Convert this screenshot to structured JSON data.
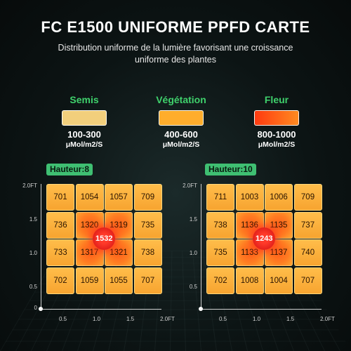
{
  "title": "FC E1500 UNIFORME PPFD CARTE",
  "subtitle": "Distribution uniforme de la lumière favorisant une croissance uniforme des plantes",
  "legend": [
    {
      "label": "Semis",
      "range": "100-300",
      "unit": "μMol/m2/S",
      "color": "#f2cf7c"
    },
    {
      "label": "Végétation",
      "range": "400-600",
      "unit": "μMol/m2/S",
      "color": "#ffad2c"
    },
    {
      "label": "Fleur",
      "range": "800-1000",
      "unit": "μMol/m2/S",
      "color": "#ff4a12"
    }
  ],
  "maps": [
    {
      "height_label": "Hauteur:8",
      "center_value": "1532",
      "rows": [
        [
          "701",
          "1054",
          "1057",
          "709"
        ],
        [
          "736",
          "1320",
          "1319",
          "735"
        ],
        [
          "733",
          "1317",
          "1321",
          "738"
        ],
        [
          "702",
          "1059",
          "1055",
          "707"
        ]
      ],
      "y_ticks": [
        "2.0FT",
        "1.5",
        "1.0",
        "0.5",
        "0"
      ],
      "x_ticks": [
        "0.5",
        "1.0",
        "1.5",
        "2.0FT"
      ]
    },
    {
      "height_label": "Hauteur:10",
      "center_value": "1243",
      "rows": [
        [
          "711",
          "1003",
          "1006",
          "709"
        ],
        [
          "738",
          "1136",
          "1135",
          "737"
        ],
        [
          "735",
          "1133",
          "1137",
          "740"
        ],
        [
          "702",
          "1008",
          "1004",
          "707"
        ]
      ],
      "y_ticks": [
        "2.0FT",
        "1.5",
        "1.0",
        "0.5"
      ],
      "x_ticks": [
        "0.5",
        "1.0",
        "1.5",
        "2.0FT"
      ]
    }
  ]
}
